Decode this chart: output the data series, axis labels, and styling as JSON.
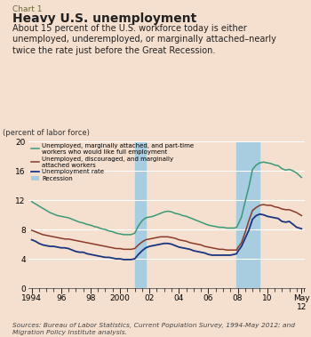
{
  "title_label": "Chart 1",
  "title": "Heavy U.S. unemployment",
  "subtitle": "About 15 percent of the U.S. workforce today is either\nunemployed, underemployed, or marginally attached–nearly\ntwice the rate just before the Great Recession.",
  "ylabel": "(percent of labor force)",
  "source_italic": "Current Population Survey",
  "source_prefix": "Sources: Bureau of Labor Statistics, ",
  "source_suffix": ", 1994-May 2012; and\nMigration Policy Institute analysis.",
  "bg_color": "#f5e0d0",
  "recession_color": "#a8cce0",
  "recession1_start": 2001.0,
  "recession1_end": 2001.75,
  "recession2_start": 2007.92,
  "recession2_end": 2009.5,
  "ylim": [
    0,
    20
  ],
  "yticks": [
    0,
    4,
    8,
    12,
    16,
    20
  ],
  "xlim_start": 1993.75,
  "xlim_end": 2012.55,
  "xtick_positions": [
    1994,
    1996,
    1998,
    2000,
    2002,
    2004,
    2006,
    2008,
    2010,
    2012.33
  ],
  "xtick_labels": [
    "1994",
    "96",
    "98",
    "2000",
    "02",
    "04",
    "06",
    "08",
    "10",
    "May\n12"
  ],
  "color_green": "#3a9a78",
  "color_brown": "#8b3a28",
  "color_blue": "#1a3580",
  "green_data": [
    [
      1994.0,
      11.8
    ],
    [
      1994.25,
      11.5
    ],
    [
      1994.5,
      11.2
    ],
    [
      1994.75,
      10.9
    ],
    [
      1995.0,
      10.6
    ],
    [
      1995.25,
      10.3
    ],
    [
      1995.5,
      10.1
    ],
    [
      1995.75,
      9.9
    ],
    [
      1996.0,
      9.8
    ],
    [
      1996.25,
      9.7
    ],
    [
      1996.5,
      9.6
    ],
    [
      1996.75,
      9.4
    ],
    [
      1997.0,
      9.2
    ],
    [
      1997.25,
      9.0
    ],
    [
      1997.5,
      8.9
    ],
    [
      1997.75,
      8.7
    ],
    [
      1998.0,
      8.6
    ],
    [
      1998.25,
      8.4
    ],
    [
      1998.5,
      8.3
    ],
    [
      1998.75,
      8.1
    ],
    [
      1999.0,
      8.0
    ],
    [
      1999.25,
      7.8
    ],
    [
      1999.5,
      7.7
    ],
    [
      1999.75,
      7.5
    ],
    [
      2000.0,
      7.4
    ],
    [
      2000.25,
      7.3
    ],
    [
      2000.5,
      7.3
    ],
    [
      2000.75,
      7.3
    ],
    [
      2001.0,
      7.5
    ],
    [
      2001.25,
      8.5
    ],
    [
      2001.5,
      9.2
    ],
    [
      2001.75,
      9.6
    ],
    [
      2002.0,
      9.7
    ],
    [
      2002.25,
      9.8
    ],
    [
      2002.5,
      10.0
    ],
    [
      2002.75,
      10.2
    ],
    [
      2003.0,
      10.4
    ],
    [
      2003.25,
      10.5
    ],
    [
      2003.5,
      10.4
    ],
    [
      2003.75,
      10.2
    ],
    [
      2004.0,
      10.1
    ],
    [
      2004.25,
      9.9
    ],
    [
      2004.5,
      9.8
    ],
    [
      2004.75,
      9.6
    ],
    [
      2005.0,
      9.4
    ],
    [
      2005.25,
      9.2
    ],
    [
      2005.5,
      9.0
    ],
    [
      2005.75,
      8.8
    ],
    [
      2006.0,
      8.6
    ],
    [
      2006.25,
      8.5
    ],
    [
      2006.5,
      8.4
    ],
    [
      2006.75,
      8.3
    ],
    [
      2007.0,
      8.3
    ],
    [
      2007.25,
      8.2
    ],
    [
      2007.5,
      8.2
    ],
    [
      2007.75,
      8.2
    ],
    [
      2007.92,
      8.3
    ],
    [
      2008.0,
      8.6
    ],
    [
      2008.25,
      9.7
    ],
    [
      2008.5,
      11.8
    ],
    [
      2008.75,
      13.8
    ],
    [
      2009.0,
      16.2
    ],
    [
      2009.25,
      16.8
    ],
    [
      2009.5,
      17.1
    ],
    [
      2009.75,
      17.2
    ],
    [
      2010.0,
      17.1
    ],
    [
      2010.25,
      17.0
    ],
    [
      2010.5,
      16.8
    ],
    [
      2010.75,
      16.7
    ],
    [
      2011.0,
      16.3
    ],
    [
      2011.25,
      16.1
    ],
    [
      2011.5,
      16.2
    ],
    [
      2011.75,
      16.0
    ],
    [
      2012.0,
      15.7
    ],
    [
      2012.33,
      15.1
    ]
  ],
  "brown_data": [
    [
      1994.0,
      7.9
    ],
    [
      1994.25,
      7.7
    ],
    [
      1994.5,
      7.5
    ],
    [
      1994.75,
      7.3
    ],
    [
      1995.0,
      7.2
    ],
    [
      1995.25,
      7.1
    ],
    [
      1995.5,
      7.0
    ],
    [
      1995.75,
      6.9
    ],
    [
      1996.0,
      6.8
    ],
    [
      1996.25,
      6.7
    ],
    [
      1996.5,
      6.7
    ],
    [
      1996.75,
      6.6
    ],
    [
      1997.0,
      6.5
    ],
    [
      1997.25,
      6.4
    ],
    [
      1997.5,
      6.3
    ],
    [
      1997.75,
      6.2
    ],
    [
      1998.0,
      6.1
    ],
    [
      1998.25,
      6.0
    ],
    [
      1998.5,
      5.9
    ],
    [
      1998.75,
      5.8
    ],
    [
      1999.0,
      5.7
    ],
    [
      1999.25,
      5.6
    ],
    [
      1999.5,
      5.5
    ],
    [
      1999.75,
      5.4
    ],
    [
      2000.0,
      5.4
    ],
    [
      2000.25,
      5.3
    ],
    [
      2000.5,
      5.3
    ],
    [
      2000.75,
      5.3
    ],
    [
      2001.0,
      5.4
    ],
    [
      2001.25,
      5.9
    ],
    [
      2001.5,
      6.3
    ],
    [
      2001.75,
      6.6
    ],
    [
      2002.0,
      6.7
    ],
    [
      2002.25,
      6.8
    ],
    [
      2002.5,
      6.9
    ],
    [
      2002.75,
      7.0
    ],
    [
      2003.0,
      7.0
    ],
    [
      2003.25,
      7.0
    ],
    [
      2003.5,
      6.9
    ],
    [
      2003.75,
      6.8
    ],
    [
      2004.0,
      6.6
    ],
    [
      2004.25,
      6.5
    ],
    [
      2004.5,
      6.4
    ],
    [
      2004.75,
      6.2
    ],
    [
      2005.0,
      6.1
    ],
    [
      2005.25,
      6.0
    ],
    [
      2005.5,
      5.9
    ],
    [
      2005.75,
      5.7
    ],
    [
      2006.0,
      5.6
    ],
    [
      2006.25,
      5.5
    ],
    [
      2006.5,
      5.4
    ],
    [
      2006.75,
      5.3
    ],
    [
      2007.0,
      5.3
    ],
    [
      2007.25,
      5.2
    ],
    [
      2007.5,
      5.2
    ],
    [
      2007.75,
      5.2
    ],
    [
      2007.92,
      5.2
    ],
    [
      2008.0,
      5.5
    ],
    [
      2008.25,
      6.2
    ],
    [
      2008.5,
      7.6
    ],
    [
      2008.75,
      9.2
    ],
    [
      2009.0,
      10.6
    ],
    [
      2009.25,
      11.0
    ],
    [
      2009.5,
      11.3
    ],
    [
      2009.75,
      11.4
    ],
    [
      2010.0,
      11.3
    ],
    [
      2010.25,
      11.3
    ],
    [
      2010.5,
      11.1
    ],
    [
      2010.75,
      11.0
    ],
    [
      2011.0,
      10.8
    ],
    [
      2011.25,
      10.7
    ],
    [
      2011.5,
      10.7
    ],
    [
      2011.75,
      10.5
    ],
    [
      2012.0,
      10.3
    ],
    [
      2012.33,
      9.9
    ]
  ],
  "blue_data": [
    [
      1994.0,
      6.6
    ],
    [
      1994.25,
      6.4
    ],
    [
      1994.5,
      6.1
    ],
    [
      1994.75,
      5.9
    ],
    [
      1995.0,
      5.8
    ],
    [
      1995.25,
      5.7
    ],
    [
      1995.5,
      5.7
    ],
    [
      1995.75,
      5.6
    ],
    [
      1996.0,
      5.5
    ],
    [
      1996.25,
      5.5
    ],
    [
      1996.5,
      5.4
    ],
    [
      1996.75,
      5.2
    ],
    [
      1997.0,
      5.0
    ],
    [
      1997.25,
      4.9
    ],
    [
      1997.5,
      4.9
    ],
    [
      1997.75,
      4.7
    ],
    [
      1998.0,
      4.6
    ],
    [
      1998.25,
      4.5
    ],
    [
      1998.5,
      4.4
    ],
    [
      1998.75,
      4.3
    ],
    [
      1999.0,
      4.2
    ],
    [
      1999.25,
      4.2
    ],
    [
      1999.5,
      4.1
    ],
    [
      1999.75,
      4.0
    ],
    [
      2000.0,
      4.0
    ],
    [
      2000.25,
      3.9
    ],
    [
      2000.5,
      3.9
    ],
    [
      2000.75,
      3.9
    ],
    [
      2001.0,
      4.0
    ],
    [
      2001.25,
      4.6
    ],
    [
      2001.5,
      5.1
    ],
    [
      2001.75,
      5.5
    ],
    [
      2002.0,
      5.7
    ],
    [
      2002.25,
      5.8
    ],
    [
      2002.5,
      5.9
    ],
    [
      2002.75,
      6.0
    ],
    [
      2003.0,
      6.1
    ],
    [
      2003.25,
      6.1
    ],
    [
      2003.5,
      6.0
    ],
    [
      2003.75,
      5.8
    ],
    [
      2004.0,
      5.6
    ],
    [
      2004.25,
      5.5
    ],
    [
      2004.5,
      5.4
    ],
    [
      2004.75,
      5.3
    ],
    [
      2005.0,
      5.1
    ],
    [
      2005.25,
      5.0
    ],
    [
      2005.5,
      4.9
    ],
    [
      2005.75,
      4.8
    ],
    [
      2006.0,
      4.6
    ],
    [
      2006.25,
      4.5
    ],
    [
      2006.5,
      4.5
    ],
    [
      2006.75,
      4.5
    ],
    [
      2007.0,
      4.5
    ],
    [
      2007.25,
      4.5
    ],
    [
      2007.5,
      4.5
    ],
    [
      2007.75,
      4.6
    ],
    [
      2007.92,
      4.7
    ],
    [
      2008.0,
      5.0
    ],
    [
      2008.25,
      5.7
    ],
    [
      2008.5,
      6.8
    ],
    [
      2008.75,
      7.9
    ],
    [
      2009.0,
      9.4
    ],
    [
      2009.25,
      9.9
    ],
    [
      2009.5,
      10.1
    ],
    [
      2009.75,
      10.0
    ],
    [
      2010.0,
      9.8
    ],
    [
      2010.25,
      9.7
    ],
    [
      2010.5,
      9.6
    ],
    [
      2010.75,
      9.5
    ],
    [
      2011.0,
      9.1
    ],
    [
      2011.25,
      9.0
    ],
    [
      2011.5,
      9.1
    ],
    [
      2011.75,
      8.7
    ],
    [
      2012.0,
      8.3
    ],
    [
      2012.33,
      8.1
    ]
  ],
  "legend_entries": [
    "Unemployed, marginally attached, and part-time\nworkers who would like full employment",
    "Unemployed, discouraged, and marginally\nattached workers",
    "Unemployment rate",
    "Recession"
  ]
}
